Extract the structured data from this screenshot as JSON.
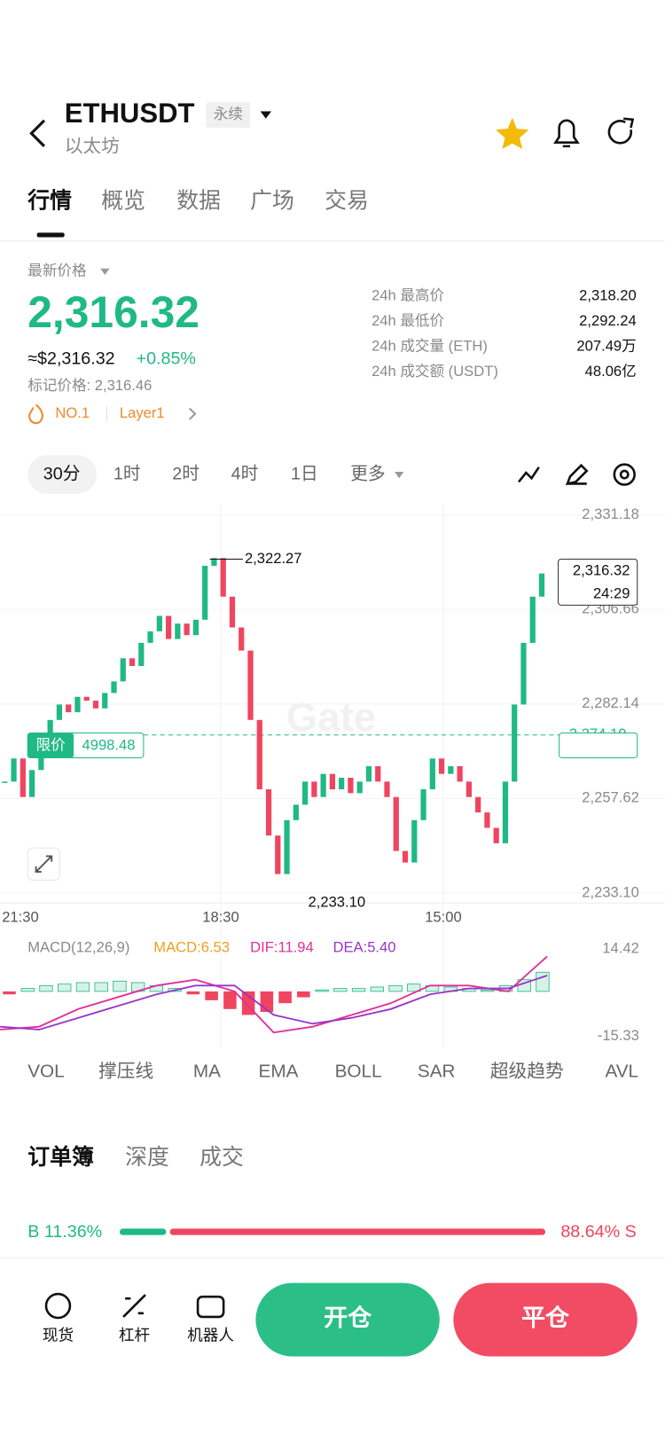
{
  "header": {
    "symbol": "ETHUSDT",
    "contract": "永续",
    "name": "以太坊"
  },
  "tabs": [
    "行情",
    "概览",
    "数据",
    "广场",
    "交易"
  ],
  "price": {
    "label": "最新价格",
    "last": "2,316.32",
    "usd": "≈$2,316.32",
    "change": "+0.85%",
    "mark": "标记价格: 2,316.46",
    "rank": "NO.1",
    "tag": "Layer1"
  },
  "stats": [
    {
      "label": "24h 最高价",
      "value": "2,318.20"
    },
    {
      "label": "24h 最低价",
      "value": "2,292.24"
    },
    {
      "label": "24h 成交量 (ETH)",
      "value": "207.49万"
    },
    {
      "label": "24h 成交额 (USDT)",
      "value": "48.06亿"
    }
  ],
  "intervals": [
    "30分",
    "1时",
    "2时",
    "4时",
    "1日",
    "更多"
  ],
  "kline": {
    "type": "candlestick",
    "watermark": "Gate",
    "up_color": "#1fb985",
    "down_color": "#f0455f",
    "closes": [
      2262,
      2268,
      2258,
      2265,
      2272,
      2278,
      2282,
      2280,
      2284,
      2283,
      2281,
      2285,
      2288,
      2294,
      2292,
      2298,
      2301,
      2305,
      2299,
      2303,
      2300,
      2304,
      2318,
      2320,
      2310,
      2302,
      2296,
      2278,
      2260,
      2248,
      2238,
      2252,
      2256,
      2262,
      2258,
      2264,
      2260,
      2263,
      2259,
      2262,
      2266,
      2262,
      2258,
      2244,
      2241,
      2252,
      2260,
      2268,
      2264,
      2266,
      2262,
      2258,
      2254,
      2250,
      2246,
      2262,
      2282,
      2298,
      2310,
      2316
    ],
    "ylim": [
      2233.1,
      2331.18
    ],
    "yticks": [
      {
        "value": 2331.18,
        "label": "2,331.18"
      },
      {
        "value": 2306.66,
        "label": "2,306.66"
      },
      {
        "value": 2282.14,
        "label": "2,282.14"
      },
      {
        "value": 2257.62,
        "label": "2,257.62"
      },
      {
        "value": 2233.1,
        "label": "2,233.10"
      }
    ],
    "time_labels": [
      "21:30",
      "18:30",
      "15:00"
    ],
    "high_label": "2,322.27",
    "low_label": "2,233.10",
    "last_price": "2,316.32",
    "countdown": "24:29",
    "limit_label": "限价",
    "limit_price": "4998.48",
    "limit_level": {
      "value": 2274.1,
      "label": "2,274.10"
    }
  },
  "macd": {
    "type": "macd",
    "title": "MACD(12,26,9)",
    "macd_label": "MACD:6.53",
    "dif_label": "DIF:11.94",
    "dea_label": "DEA:5.40",
    "ylim": [
      -15.33,
      14.42
    ],
    "yticks": [
      14.42,
      -15.33
    ],
    "histogram": [
      -1,
      1,
      2,
      2.5,
      3,
      3,
      3.5,
      3,
      2,
      1,
      -1,
      -3,
      -6,
      -8,
      -7,
      -4,
      -2,
      0.5,
      1,
      1,
      1.5,
      2,
      2.5,
      2,
      1.5,
      1,
      0.5,
      2,
      4,
      6.53
    ],
    "dif": [
      -13,
      -12,
      -6,
      -2,
      2,
      4,
      0,
      -14,
      -12,
      -8,
      -4,
      2,
      2,
      0,
      11.94
    ],
    "dea": [
      -12,
      -13,
      -9,
      -5,
      -1,
      2,
      2,
      -8,
      -11,
      -9,
      -6,
      -1,
      1,
      1,
      5.4
    ]
  },
  "indicators": [
    "VOL",
    "撑压线",
    "MA",
    "EMA",
    "BOLL",
    "SAR",
    "超级趋势",
    "AVL"
  ],
  "orderbook": {
    "tabs": [
      "订单簿",
      "深度",
      "成交"
    ],
    "buy": 11.36,
    "buy_label": "B 11.36%",
    "sell": 88.64,
    "sell_label": "88.64% S"
  },
  "nav": [
    "现货",
    "杠杆",
    "机器人"
  ],
  "buttons": {
    "open": "开仓",
    "close": "平仓"
  }
}
